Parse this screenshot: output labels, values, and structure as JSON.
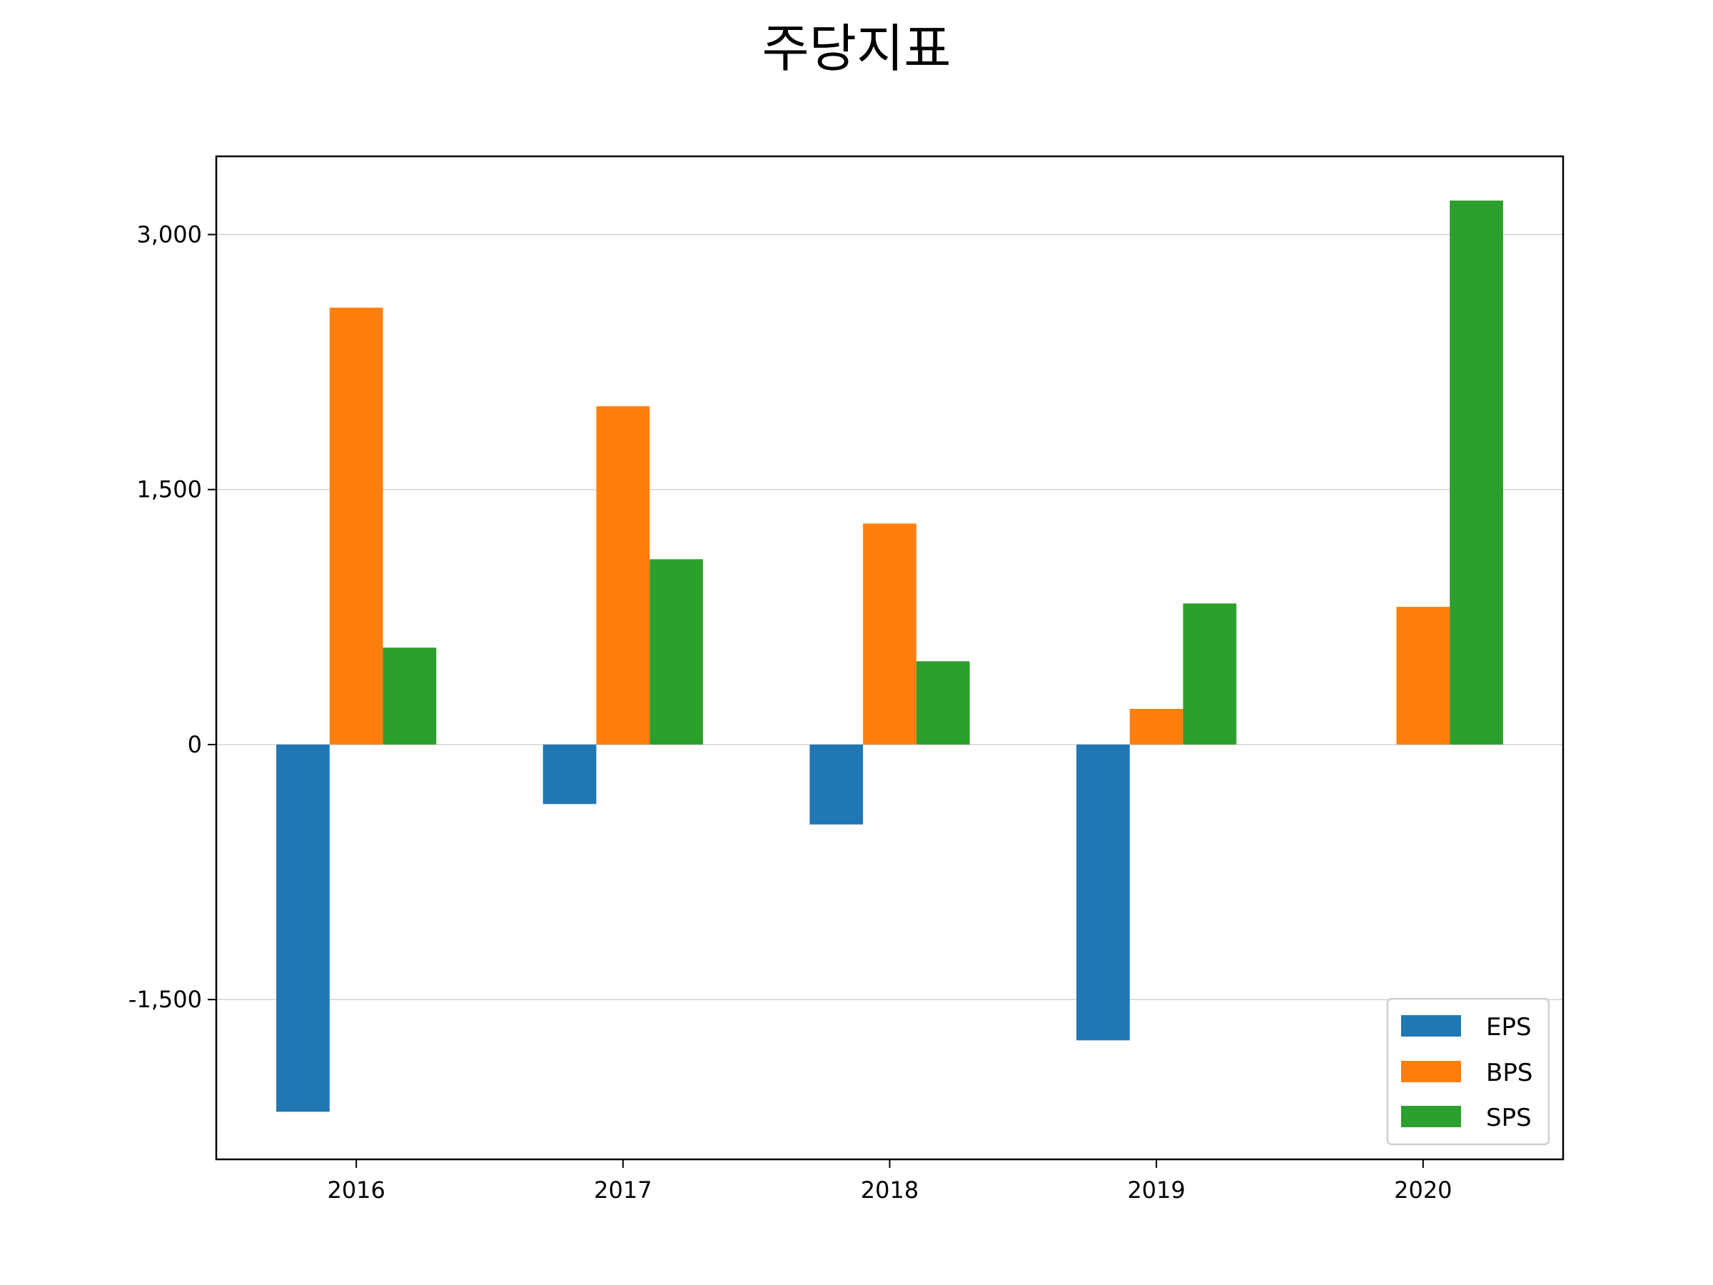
{
  "chart_data": {
    "type": "bar",
    "title": "주당지표",
    "xlabel": "",
    "ylabel": "",
    "categories": [
      "2016",
      "2017",
      "2018",
      "2019",
      "2020"
    ],
    "series": [
      {
        "name": "EPS",
        "color": "#1f77b4",
        "values": [
          -2160,
          -350,
          -470,
          -1740,
          0
        ]
      },
      {
        "name": "BPS",
        "color": "#ff7f0e",
        "values": [
          2570,
          1990,
          1300,
          210,
          810
        ]
      },
      {
        "name": "SPS",
        "color": "#2ca02c",
        "values": [
          570,
          1090,
          490,
          830,
          3200
        ]
      }
    ],
    "ylim": [
      -2440,
      3460
    ],
    "yticks": [
      -1500,
      0,
      1500,
      3000
    ],
    "ytick_labels": [
      "-1,500",
      "0",
      "1,500",
      "3,000"
    ],
    "grid": "y",
    "legend_position": "lower-right"
  }
}
